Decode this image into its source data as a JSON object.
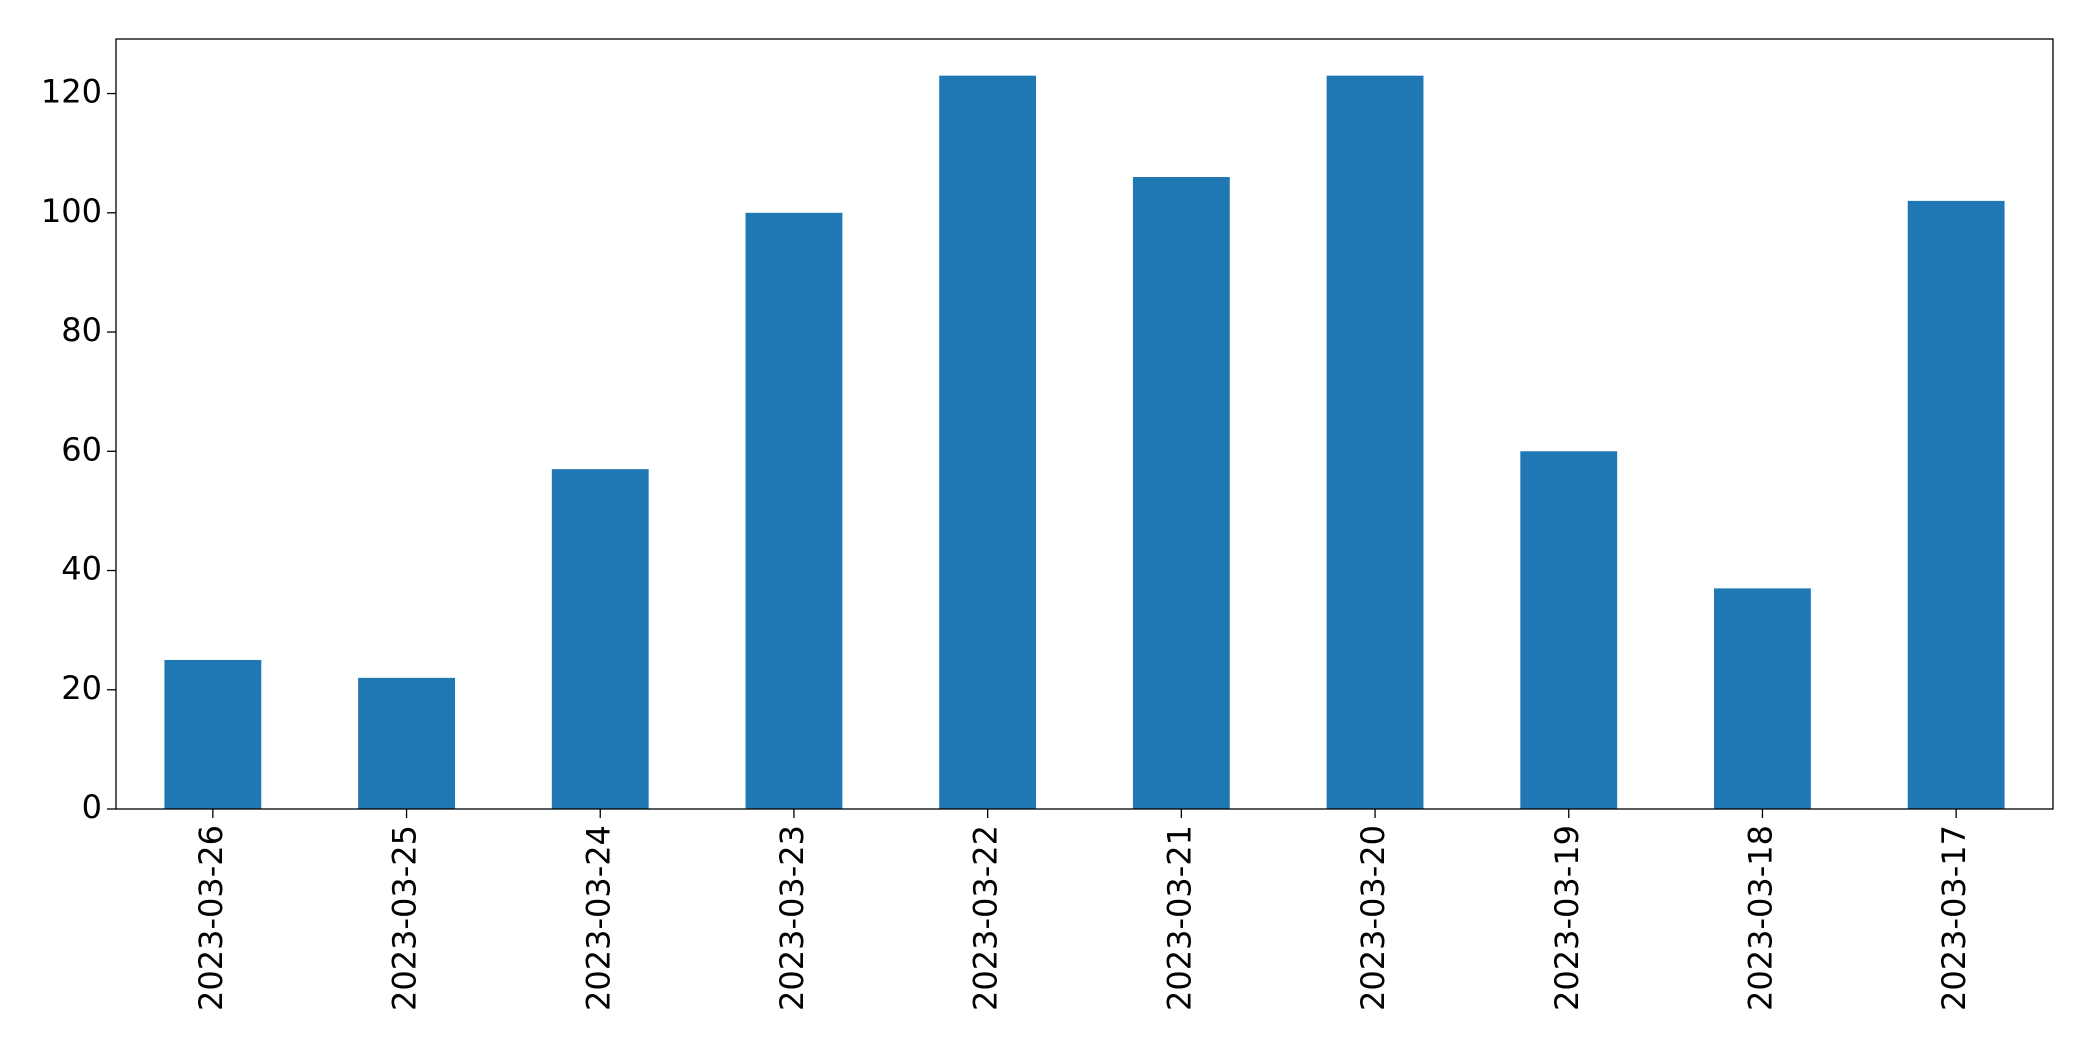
{
  "chart_data": {
    "type": "bar",
    "categories": [
      "2023-03-26",
      "2023-03-25",
      "2023-03-24",
      "2023-03-23",
      "2023-03-22",
      "2023-03-21",
      "2023-03-20",
      "2023-03-19",
      "2023-03-18",
      "2023-03-17"
    ],
    "values": [
      25,
      22,
      57,
      100,
      123,
      106,
      123,
      60,
      37,
      102
    ],
    "color": "#1f77b4",
    "ylim": [
      0,
      129.15
    ],
    "yticks": [
      0,
      20,
      40,
      60,
      80,
      100,
      120
    ],
    "grid": false
  }
}
